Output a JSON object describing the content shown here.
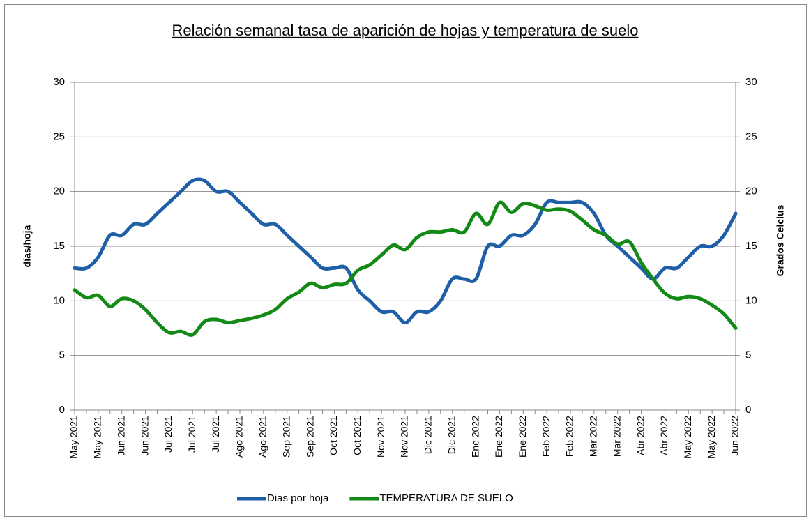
{
  "chart_data": {
    "type": "line",
    "title": "Relación semanal tasa de aparición de hojas y temperatura de suelo",
    "y_label": "días/hoja",
    "y2_label": "Grados Celcius",
    "categories": [
      "May 2021",
      null,
      "May 2021",
      null,
      "Jun 2021",
      null,
      "Jun 2021",
      null,
      "Jul 2021",
      null,
      "Jul 2021",
      null,
      "Jul 2021",
      null,
      "Ago 2021",
      null,
      "Ago 2021",
      null,
      "Sep 2021",
      null,
      "Sep 2021",
      null,
      "Oct 2021",
      null,
      "Oct 2021",
      null,
      "Nov 2021",
      null,
      "Nov 2021",
      null,
      "Dic 2021",
      null,
      "Dic 2021",
      null,
      "Ene 2022",
      null,
      "Ene 2022",
      null,
      "Ene 2022",
      null,
      "Feb 2022",
      null,
      "Feb 2022",
      null,
      "Mar 2022",
      null,
      "Mar 2022",
      null,
      "Abr 2022",
      null,
      "Abr 2022",
      null,
      "May 2022",
      null,
      "May 2022",
      null,
      "Jun 2022"
    ],
    "series": [
      {
        "name": "Dias por hoja",
        "color": "#1f5fa8",
        "values": [
          13,
          13,
          14,
          16,
          16,
          17,
          17,
          18,
          19,
          20,
          21,
          21,
          20,
          20,
          19,
          18,
          17,
          17,
          16,
          15,
          14,
          13,
          13,
          13,
          11,
          10,
          9,
          9,
          8,
          9,
          9,
          10,
          12,
          12,
          12,
          15,
          15,
          16,
          16,
          17,
          19,
          19,
          19,
          19,
          18,
          16,
          15,
          14,
          13,
          12,
          13,
          13,
          14,
          15,
          15,
          16,
          18
        ]
      },
      {
        "name": "TEMPERATURA DE SUELO",
        "color": "#138a16",
        "axis": "y2",
        "values": [
          11,
          10.3,
          10.5,
          9.5,
          10.2,
          10,
          9.2,
          8,
          7.1,
          7.2,
          6.9,
          8.1,
          8.3,
          8,
          8.2,
          8.4,
          8.7,
          9.2,
          10.2,
          10.8,
          11.6,
          11.2,
          11.5,
          11.6,
          12.8,
          13.3,
          14.2,
          15.1,
          14.7,
          15.8,
          16.3,
          16.3,
          16.5,
          16.3,
          18,
          17,
          19,
          18.1,
          18.9,
          18.7,
          18.3,
          18.4,
          18.2,
          17.4,
          16.5,
          16,
          15.2,
          15.4,
          13.5,
          12,
          10.7,
          10.2,
          10.4,
          10.2,
          9.6,
          8.8,
          7.5
        ]
      }
    ],
    "ylim": [
      0,
      30
    ],
    "yticks": [
      0,
      5,
      10,
      15,
      20,
      25,
      30
    ],
    "y2lim": [
      0,
      30
    ],
    "y2ticks": [
      0,
      5,
      10,
      15,
      20,
      25,
      30
    ],
    "grid": true
  }
}
